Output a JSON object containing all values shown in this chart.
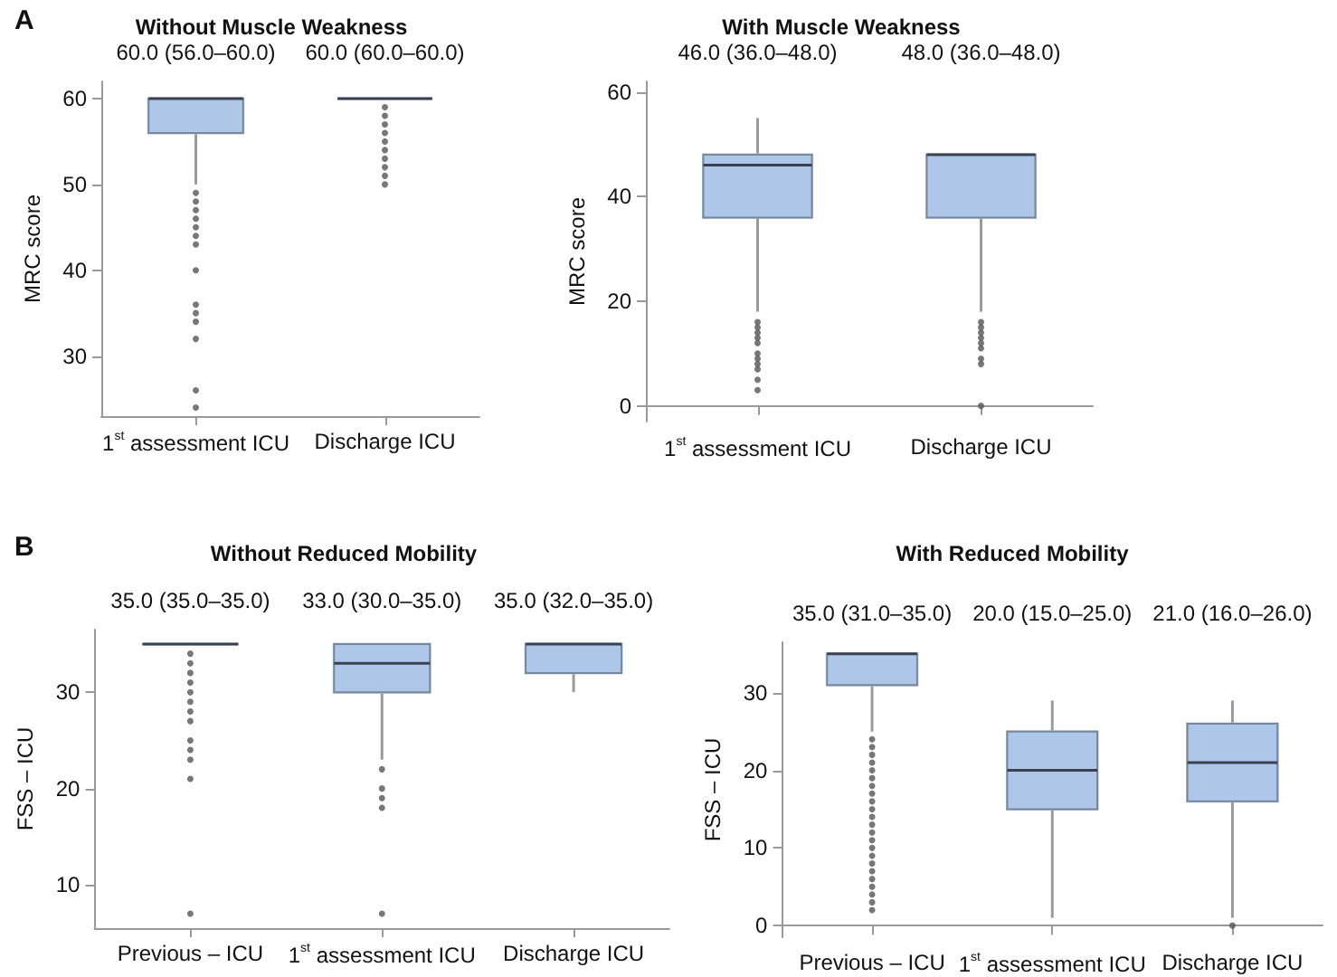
{
  "chart_data": [
    {
      "type": "box",
      "title": "Without Muscle Weakness",
      "ylabel": "MRC score",
      "categories": [
        "1$^{st}$ assessment ICU",
        "Discharge ICU"
      ],
      "ylim": [
        23,
        62
      ],
      "yticks": [
        30,
        40,
        50,
        60
      ],
      "grid": false,
      "series": [
        {
          "color": "#aec6e8",
          "boxes": [
            {
              "low": 50,
              "q1": 56,
              "median": 60,
              "q3": 60,
              "high": 60,
              "outliers": [
                49,
                48,
                47,
                46,
                45,
                44,
                43,
                40,
                36,
                35,
                34,
                32,
                26,
                24
              ]
            },
            {
              "low": 60,
              "q1": 60,
              "median": 60,
              "q3": 60,
              "high": 60,
              "outliers": [
                59,
                58,
                57,
                56,
                55,
                54,
                53,
                52,
                51,
                50
              ]
            }
          ]
        }
      ],
      "annotations": [
        "A",
        "60.0 (56.0–60.0)",
        "60.0 (60.0–60.0)"
      ]
    },
    {
      "type": "box",
      "title": "With Muscle Weakness",
      "ylabel": "MRC score",
      "categories": [
        "1$^{st}$ assessment ICU",
        "Discharge ICU"
      ],
      "ylim": [
        -3,
        62
      ],
      "yticks": [
        0,
        20,
        40,
        60
      ],
      "grid": false,
      "series": [
        {
          "color": "#aec6e8",
          "boxes": [
            {
              "low": 18,
              "q1": 36,
              "median": 46,
              "q3": 48,
              "high": 55,
              "outliers": [
                16,
                15,
                14,
                13,
                12,
                10,
                9,
                8,
                7,
                5,
                3
              ]
            },
            {
              "low": 18,
              "q1": 36,
              "median": 48,
              "q3": 48,
              "high": 48,
              "outliers": [
                16,
                15,
                14,
                13,
                12,
                11,
                9,
                8,
                0
              ]
            }
          ]
        }
      ],
      "annotations": [
        "46.0 (36.0–48.0)",
        "48.0 (36.0–48.0)"
      ]
    },
    {
      "type": "box",
      "title": "Without Reduced Mobility",
      "ylabel": "FSS – ICU",
      "categories": [
        "Previous – ICU",
        "1$^{st}$ assessment ICU",
        "Discharge ICU"
      ],
      "ylim": [
        5.5,
        36.5
      ],
      "yticks": [
        10,
        20,
        30
      ],
      "grid": false,
      "series": [
        {
          "color": "#aec6e8",
          "boxes": [
            {
              "low": 35,
              "q1": 35,
              "median": 35,
              "q3": 35,
              "high": 35,
              "outliers": [
                34,
                33,
                32,
                31,
                30,
                29,
                28,
                27,
                25,
                24,
                23,
                21,
                7
              ]
            },
            {
              "low": 23,
              "q1": 30,
              "median": 33,
              "q3": 35,
              "high": 35,
              "outliers": [
                22,
                20,
                19,
                18,
                7
              ]
            },
            {
              "low": 30,
              "q1": 32,
              "median": 35,
              "q3": 35,
              "high": 35
            }
          ]
        }
      ],
      "annotations": [
        "B",
        "35.0 (35.0–35.0)",
        "33.0 (30.0–35.0)",
        "35.0 (32.0–35.0)"
      ]
    },
    {
      "type": "box",
      "title": "With Reduced Mobility",
      "ylabel": "FSS – ICU",
      "categories": [
        "Previous – ICU",
        "1$^{st}$ assessment ICU",
        "Discharge ICU"
      ],
      "ylim": [
        -1.5,
        36.5
      ],
      "yticks": [
        0,
        10,
        20,
        30
      ],
      "grid": false,
      "series": [
        {
          "color": "#aec6e8",
          "boxes": [
            {
              "low": 25,
              "q1": 31,
              "median": 35,
              "q3": 35,
              "high": 35,
              "outliers": [
                24,
                23,
                22,
                21,
                20,
                19,
                18,
                17,
                16,
                15,
                14,
                13,
                12,
                11,
                10,
                9,
                8,
                7,
                6,
                5,
                4,
                3,
                2
              ]
            },
            {
              "low": 1,
              "q1": 15,
              "median": 20,
              "q3": 25,
              "high": 29
            },
            {
              "low": 1,
              "q1": 16,
              "median": 21,
              "q3": 26,
              "high": 29,
              "outliers": [
                0
              ]
            }
          ]
        }
      ],
      "annotations": [
        "35.0 (31.0–35.0)",
        "20.0 (15.0–25.0)",
        "21.0 (16.0–26.0)"
      ]
    }
  ]
}
